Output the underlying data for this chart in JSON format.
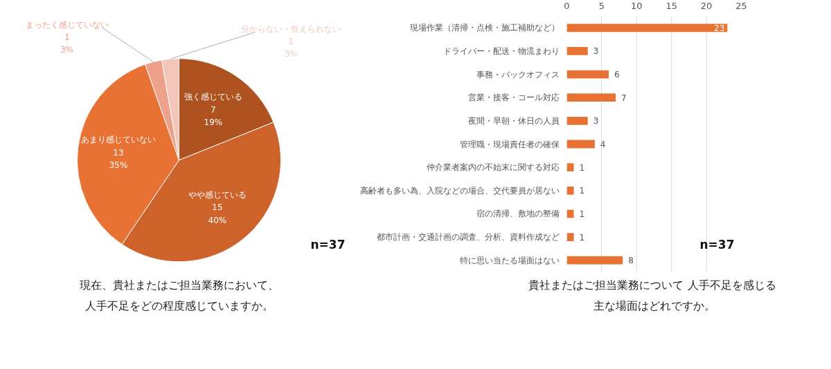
{
  "chart_data": [
    {
      "type": "pie",
      "title": "現在、貴社またはご担当業務において、人手不足をどの程度感じていますか。",
      "categories": [
        "強く感じている",
        "やや感じている",
        "あまり感じていない",
        "まったく感じていない",
        "分からない・答えられない"
      ],
      "values": [
        7,
        15,
        13,
        1,
        1
      ],
      "colors": [
        "#ae5220",
        "#cd622b",
        "#e87233",
        "#eda08a",
        "#f2c7b9"
      ],
      "value_labels": [
        "7\n19%",
        "15\n40%",
        "13\n35%",
        "1\n3%",
        "1\n3%"
      ],
      "annotations": [
        "n=37"
      ]
    },
    {
      "type": "bar",
      "orientation": "horizontal",
      "title": "貴社またはご担当業務について  人手不足を感じる主な場面はどれですか。",
      "categories": [
        "現場作業（清掃・点検・施工補助など）",
        "ドライバー・配送・物流まわり",
        "事務・バックオフィス",
        "営業・接客・コール対応",
        "夜間・早朝・休日の人員",
        "管理職・現場責任者の確保",
        "仲介業者案内の不始末に関する対応",
        "高齢者も多い為、入院などの場合、交代要員が居ない",
        "宿の清掃、敷地の整備",
        "都市計画・交通計画の調査、分析、資料作成など",
        "特に思い当たる場面はない"
      ],
      "values": [
        23,
        3,
        6,
        7,
        3,
        4,
        1,
        1,
        1,
        1,
        8
      ],
      "color": "#e87233",
      "xlim": [
        0,
        25
      ],
      "xticks": [
        0,
        5,
        10,
        15,
        20,
        25
      ],
      "grid": "x",
      "data_labels": true,
      "annotations": [
        "n=37"
      ]
    }
  ]
}
